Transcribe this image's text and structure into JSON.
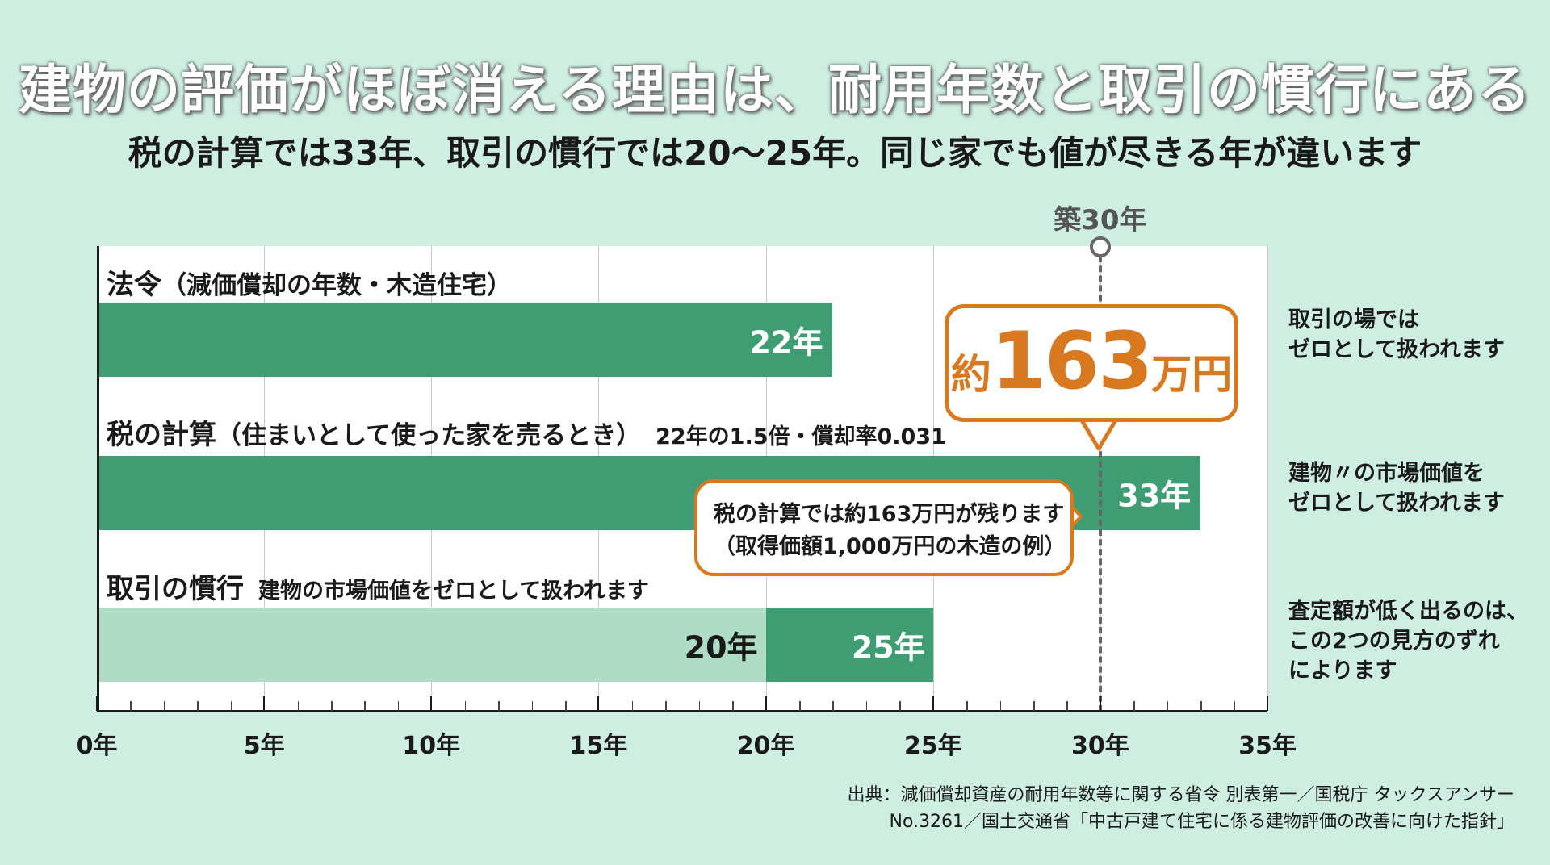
{
  "title": "建物の評価がほぼ消える理由は、耐用年数と取引の慣行にある",
  "subtitle": "税の計算では33年、取引の慣行では20〜25年。同じ家でも値が尽きる年が違います",
  "chart_data": {
    "type": "bar",
    "orientation": "horizontal",
    "x_unit": "年",
    "xlim": [
      0,
      35
    ],
    "x_ticks": [
      0,
      5,
      10,
      15,
      20,
      25,
      30,
      35
    ],
    "x_tick_labels": [
      "0年",
      "5年",
      "10年",
      "15年",
      "20年",
      "25年",
      "30年",
      "35年"
    ],
    "grid": true,
    "rows": [
      {
        "label": "法令",
        "label_paren": "（減価償却の年数・木造住宅）",
        "note": "",
        "start": 0,
        "value": 22,
        "value_label": "22年"
      },
      {
        "label": "税の計算",
        "label_paren": "（住まいとして使った家を売るとき）",
        "note": "22年の1.5倍・償却率0.031",
        "start": 0,
        "value": 33,
        "value_label": "33年"
      },
      {
        "label": "取引の慣行",
        "label_paren": "",
        "note": "建物の市場価値をゼロとして扱われます",
        "range_start": 20,
        "range_end": 25,
        "start_label": "20年",
        "value_label": "25年"
      }
    ],
    "marker": {
      "x": 30,
      "label": "築30年"
    },
    "callout_main": {
      "prefix": "約",
      "number": "163",
      "suffix": "万円"
    },
    "callout_note": {
      "line1": "税の計算では約163万円が残ります",
      "line2": "（取得価額1,000万円の木造の例）"
    }
  },
  "right_notes": [
    {
      "lines": [
        "取引の場では",
        "ゼロとして扱われます"
      ]
    },
    {
      "lines": [
        "建物〃の市場価値を",
        "ゼロとして扱われます"
      ]
    },
    {
      "lines": [
        "査定額が低く出るのは、",
        "この2つの見方のずれ",
        "によります"
      ]
    }
  ],
  "source": {
    "line1": "出典：減価償却資産の耐用年数等に関する省令 別表第一／国税庁 タックスアンサー",
    "line2": "No.3261／国土交通省「中古戸建て住宅に係る建物評価の改善に向けた指針」"
  },
  "colors": {
    "background": "#cdeee0",
    "bar": "#3e9d72",
    "bar_light": "#aedcc4",
    "accent": "#d9791f",
    "marker": "#666666"
  }
}
